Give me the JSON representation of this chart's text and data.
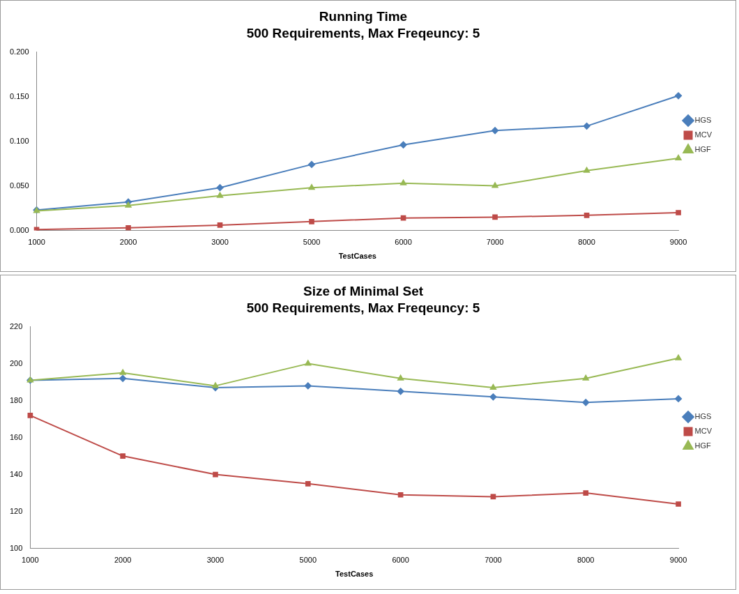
{
  "chart_data": [
    {
      "type": "line",
      "title": "Running Time",
      "subtitle": "500 Requirements, Max Freqeuncy: 5",
      "xlabel": "TestCases",
      "categories": [
        "1000",
        "2000",
        "3000",
        "5000",
        "6000",
        "7000",
        "8000",
        "9000"
      ],
      "series": [
        {
          "name": "HGS",
          "color": "#4a7ebb",
          "marker": "diamond",
          "values": [
            0.023,
            0.032,
            0.048,
            0.074,
            0.096,
            0.112,
            0.117,
            0.151
          ]
        },
        {
          "name": "MCV",
          "color": "#be4b48",
          "marker": "square",
          "values": [
            0.001,
            0.003,
            0.006,
            0.01,
            0.014,
            0.015,
            0.017,
            0.02
          ]
        },
        {
          "name": "HGF",
          "color": "#98b954",
          "marker": "triangle",
          "values": [
            0.022,
            0.028,
            0.039,
            0.048,
            0.053,
            0.05,
            0.067,
            0.081
          ]
        }
      ],
      "ylim": [
        0,
        0.2
      ],
      "yticks": [
        {
          "value": 0,
          "label": "0.000"
        },
        {
          "value": 0.05,
          "label": "0.050"
        },
        {
          "value": 0.1,
          "label": "0.100"
        },
        {
          "value": 0.15,
          "label": "0.150"
        },
        {
          "value": 0.2,
          "label": "0.200"
        }
      ],
      "grid": false,
      "legend": "right"
    },
    {
      "type": "line",
      "title": "Size of Minimal Set",
      "subtitle": "500 Requirements, Max Freqeuncy: 5",
      "xlabel": "TestCases",
      "categories": [
        "1000",
        "2000",
        "3000",
        "5000",
        "6000",
        "7000",
        "8000",
        "9000"
      ],
      "series": [
        {
          "name": "HGS",
          "color": "#4a7ebb",
          "marker": "diamond",
          "values": [
            191,
            192,
            187,
            188,
            185,
            182,
            179,
            181
          ]
        },
        {
          "name": "MCV",
          "color": "#be4b48",
          "marker": "square",
          "values": [
            172,
            150,
            140,
            135,
            129,
            128,
            130,
            124
          ]
        },
        {
          "name": "HGF",
          "color": "#98b954",
          "marker": "triangle",
          "values": [
            191,
            195,
            188,
            200,
            192,
            187,
            192,
            203
          ]
        }
      ],
      "ylim": [
        100,
        220
      ],
      "yticks": [
        100,
        120,
        140,
        160,
        180,
        200,
        220
      ],
      "grid": false,
      "legend": "right"
    }
  ]
}
